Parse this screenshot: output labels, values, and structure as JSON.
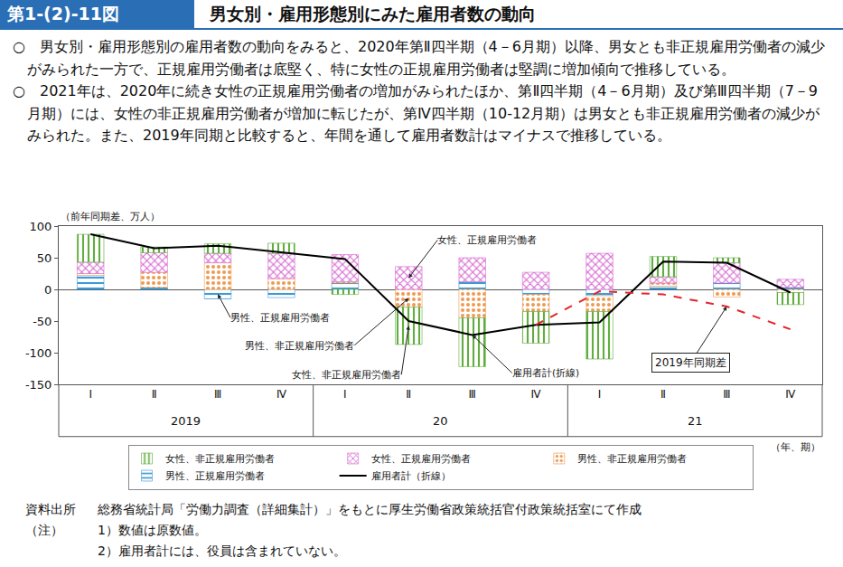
{
  "header": {
    "figure_no": "第1-(2)-11図",
    "title": "男女別・雇用形態別にみた雇用者数の動向"
  },
  "summary": [
    "○　男女別・雇用形態別の雇用者数の動向をみると、2020年第Ⅱ四半期（4－6月期）以降、男女とも非正規雇用労働者の減少がみられた一方で、正規雇用労働者は底堅く、特に女性の正規雇用労働者は堅調に増加傾向で推移している。",
    "○　2021年は、2020年に続き女性の正規雇用労働者の増加がみられたほか、第Ⅱ四半期（4－6月期）及び第Ⅲ四半期（7－9月期）には、女性の非正規雇用労働者が増加に転じたが、第Ⅳ四半期（10-12月期）は男女とも非正規雇用労働者の減少がみられた。また、2019年同期と比較すると、年間を通して雇用者数計はマイナスで推移している。"
  ],
  "chart_data": {
    "type": "bar",
    "stacked": true,
    "grid": false,
    "legend": "bottom",
    "y_label": "（前年同期差、万人）",
    "x_label": "（年、期）",
    "categories": [
      "Ⅰ",
      "Ⅱ",
      "Ⅲ",
      "Ⅳ",
      "Ⅰ",
      "Ⅱ",
      "Ⅲ",
      "Ⅳ",
      "Ⅰ",
      "Ⅱ",
      "Ⅲ",
      "Ⅳ"
    ],
    "groups": [
      "2019",
      "20",
      "21"
    ],
    "ylim": [
      -150,
      100
    ],
    "yticks": [
      -150,
      -100,
      -50,
      0,
      50,
      100
    ],
    "series": [
      {
        "name": "男性、正規雇用労働者",
        "color": "#3d9ad6",
        "marker": "wave",
        "values": [
          22,
          3,
          -15,
          -13,
          10,
          0,
          12,
          -8,
          -10,
          5,
          10,
          3
        ]
      },
      {
        "name": "男性、非正規雇用労働者",
        "color": "#ee9a52",
        "marker": "dots",
        "values": [
          3,
          24,
          42,
          17,
          2,
          -28,
          -45,
          -27,
          -25,
          5,
          -12,
          -5
        ]
      },
      {
        "name": "女性、正規雇用労働者",
        "color": "#d86ad2",
        "marker": "cross",
        "values": [
          18,
          31,
          15,
          40,
          43,
          36,
          38,
          27,
          57,
          10,
          32,
          13
        ]
      },
      {
        "name": "女性、非正規雇用労働者",
        "color": "#62ad3f",
        "marker": "vertical",
        "values": [
          44,
          9,
          15,
          16,
          -8,
          -59,
          -77,
          -50,
          -75,
          32,
          8,
          -19
        ]
      },
      {
        "name": "雇用者計（折線）",
        "type": "line",
        "color": "#000000",
        "line_style": "solid",
        "values": [
          87,
          65,
          69,
          58,
          48,
          -50,
          -72,
          -56,
          -52,
          44,
          42,
          -5
        ]
      }
    ],
    "comparison": {
      "name": "2019年同期差",
      "type": "line",
      "color": "#e3262b",
      "line_style": "dashed",
      "values": [
        null,
        null,
        null,
        null,
        null,
        null,
        null,
        -56,
        -3,
        -8,
        -27,
        -63
      ]
    },
    "annotations": [
      {
        "text": "女性、正規雇用労働者",
        "series": "女性、正規雇用労働者",
        "x": 5
      },
      {
        "text": "男性、正規雇用労働者",
        "series": "男性、正規雇用労働者",
        "x": 2
      },
      {
        "text": "男性、非正規雇用労働者",
        "series": "男性、非正規雇用労働者",
        "x": 5
      },
      {
        "text": "女性、非正規雇用労働者",
        "series": "女性、非正規雇用労働者",
        "x": 5
      },
      {
        "text": "雇用者計(折線)",
        "series": "雇用者計（折線）",
        "x": 6
      },
      {
        "text": "2019年同期差",
        "series": "2019年同期差",
        "x": 10
      }
    ]
  },
  "notes": {
    "source_label": "資料出所",
    "source": "総務省統計局「労働力調査（詳細集計）」をもとに厚生労働省政策統括官付政策統括室にて作成",
    "note_label": "（注）",
    "items": [
      "1）数値は原数値。",
      "2）雇用者計には、役員は含まれていない。"
    ]
  }
}
